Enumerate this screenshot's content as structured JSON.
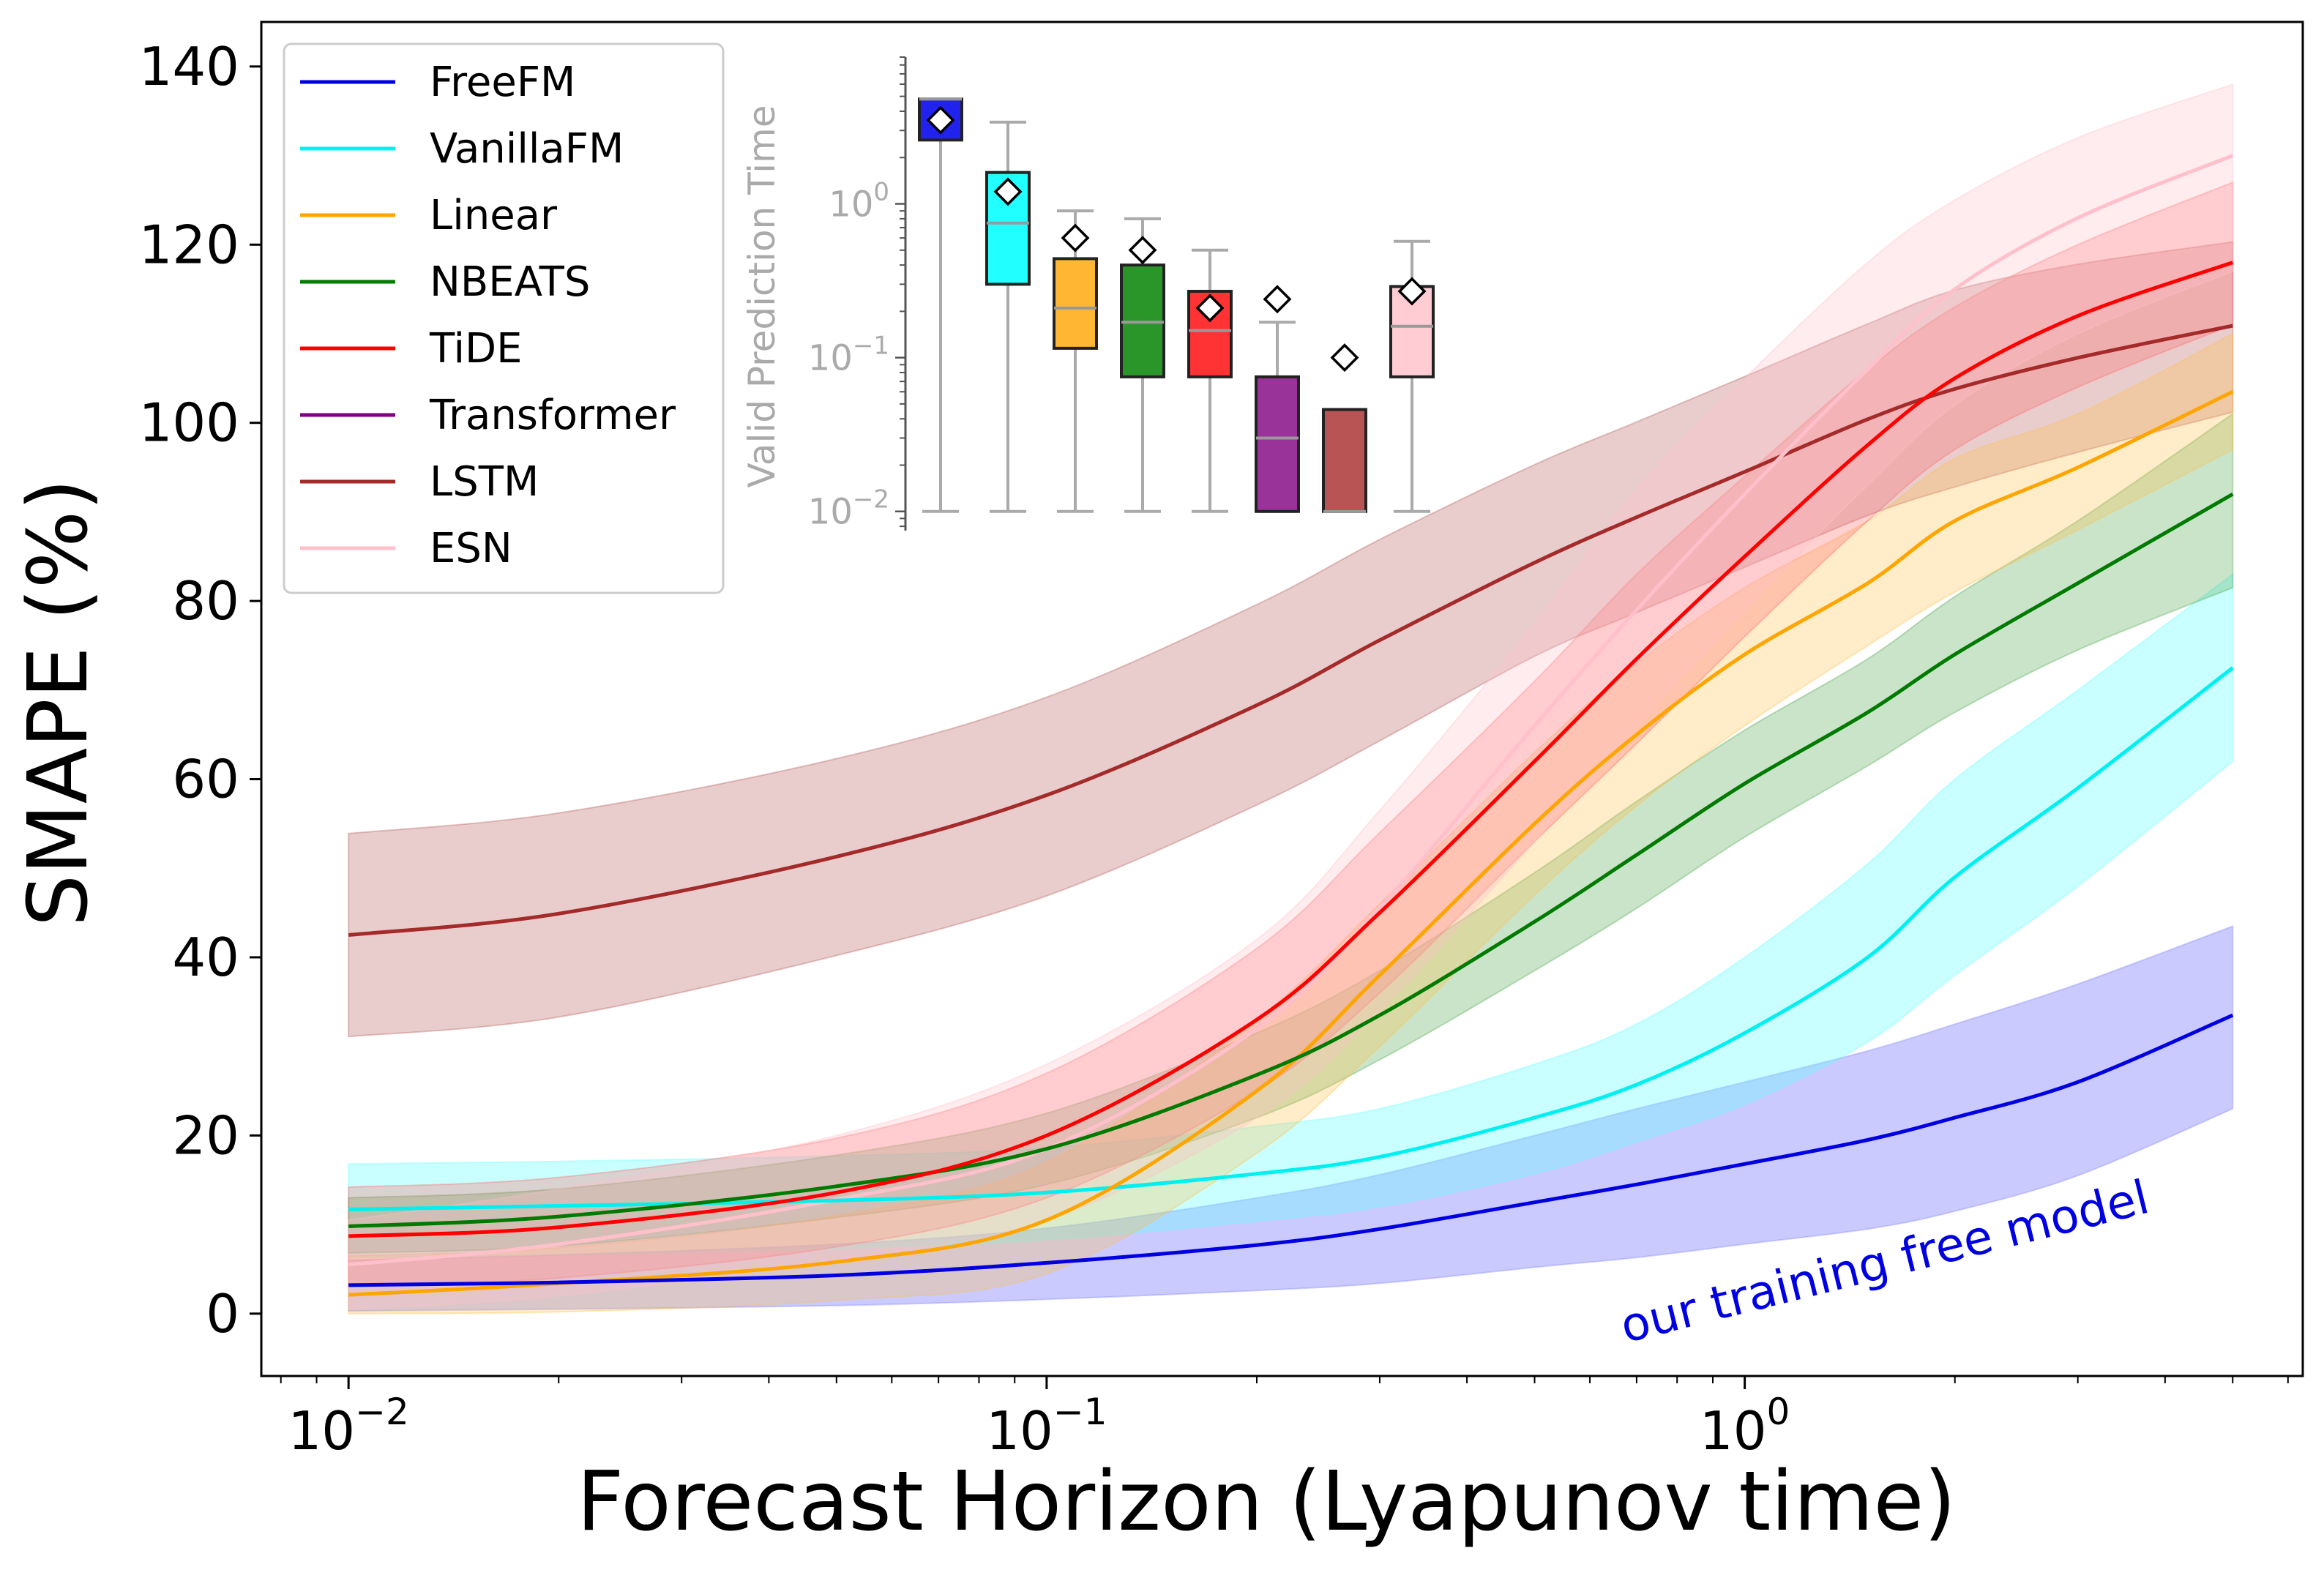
{
  "colors": {
    "FreeFM": "#0000e0",
    "VanillaFM": "#00f0f0",
    "Linear": "#ffa500",
    "NBEATS": "#007a00",
    "TiDE": "#ff0000",
    "Transformer": "#800080",
    "LSTM": "#a52a2a",
    "ESN": "#ffc0cb",
    "FreeFM_fill": "#8080ff",
    "VanillaFM_fill": "#66ffff",
    "Linear_fill": "#ffc04d",
    "NBEATS_fill": "#4da64d",
    "TiDE_fill": "#ff6666",
    "LSTM_fill": "#b55a5a",
    "ESN_fill": "#ffc0cb"
  },
  "chart_data": [
    {
      "type": "line",
      "title": "",
      "xlabel": "Forecast Horizon (Lyapunov time)",
      "ylabel": "SMAPE (%)",
      "xscale": "log",
      "xlim": [
        0.0075,
        6.3
      ],
      "ylim": [
        -7,
        145
      ],
      "x_ticks": [
        {
          "value": 0.01,
          "base": "10",
          "exp": "−2"
        },
        {
          "value": 0.1,
          "base": "10",
          "exp": "−1"
        },
        {
          "value": 1,
          "base": "10",
          "exp": "0"
        }
      ],
      "y_ticks": [
        0,
        20,
        40,
        60,
        80,
        100,
        120,
        140
      ],
      "x": [
        0.01,
        0.02,
        0.05,
        0.1,
        0.2,
        0.3,
        0.5,
        0.7,
        1.0,
        1.5,
        2.0,
        3.0,
        5.0
      ],
      "series": [
        {
          "name": "FreeFM",
          "values": [
            3.2,
            3.5,
            4.3,
            5.7,
            7.7,
            9.5,
            12.5,
            14.5,
            16.8,
            19.5,
            22,
            26,
            33.5
          ],
          "lower": [
            0.3,
            0.5,
            0.9,
            1.6,
            2.6,
            3.4,
            5.2,
            6.3,
            7.8,
            9.5,
            11.5,
            15.5,
            23
          ],
          "upper": [
            6,
            6.6,
            7.8,
            9.6,
            13,
            15.6,
            20,
            23,
            26,
            29.5,
            32.5,
            37,
            43.5
          ]
        },
        {
          "name": "VanillaFM",
          "values": [
            11.7,
            12.1,
            12.7,
            13.6,
            15.7,
            17.6,
            22,
            25.7,
            31.5,
            40,
            49,
            59,
            72.5
          ],
          "lower": [
            6.3,
            6.6,
            7.3,
            8.3,
            10.4,
            12,
            15.7,
            19.3,
            23.5,
            30.5,
            38,
            48,
            62
          ],
          "upper": [
            16.8,
            17.1,
            17.7,
            18.6,
            21,
            23,
            28,
            32.5,
            40,
            50.5,
            60,
            70,
            83
          ]
        },
        {
          "name": "Linear",
          "values": [
            2.1,
            3.4,
            5.8,
            10.5,
            25,
            38,
            55,
            65,
            74,
            82,
            89,
            95,
            103.5
          ],
          "lower": [
            0,
            0.2,
            1.5,
            4.5,
            18,
            30,
            47,
            57,
            66,
            75,
            81,
            88,
            97
          ],
          "upper": [
            6.5,
            7.4,
            11,
            17,
            33,
            46,
            63,
            73,
            81.5,
            89,
            96,
            101,
            110
          ]
        },
        {
          "name": "NBEATS",
          "values": [
            9.8,
            10.9,
            14.3,
            18.5,
            26.8,
            33.5,
            44,
            51.5,
            59.5,
            67.5,
            74,
            82,
            92
          ],
          "lower": [
            6.8,
            7.6,
            10.8,
            14.5,
            22,
            28.5,
            38.5,
            45.5,
            53.5,
            61.5,
            67.5,
            74.5,
            81.5
          ],
          "upper": [
            13,
            14,
            17.8,
            22.5,
            31.5,
            38.5,
            49.5,
            57.5,
            65.5,
            73.5,
            80.5,
            89,
            101
          ]
        },
        {
          "name": "TiDE",
          "values": [
            8.7,
            9.7,
            13.6,
            20,
            33,
            45,
            62,
            73.5,
            85,
            97.5,
            105,
            112,
            118
          ],
          "lower": [
            3,
            4,
            7.5,
            13,
            25,
            36,
            53,
            64,
            76,
            89,
            97,
            104,
            111
          ],
          "upper": [
            14.2,
            15.3,
            19.7,
            27,
            41,
            54,
            71,
            83,
            94,
            106,
            113,
            120,
            127
          ]
        },
        {
          "name": "LSTM",
          "values": [
            42.5,
            44.9,
            51.3,
            58.2,
            68.3,
            75.6,
            84.3,
            89.4,
            94.5,
            100.4,
            103.8,
            107.3,
            110.9
          ],
          "lower": [
            31.1,
            33.3,
            40.2,
            46.9,
            57.1,
            64.3,
            73.8,
            78.7,
            83.8,
            89.6,
            92.8,
            96.7,
            101.2
          ],
          "upper": [
            53.9,
            56.2,
            62.3,
            69.2,
            79.6,
            86.9,
            95.3,
            100.1,
            105.2,
            111.1,
            114.9,
            117.8,
            120.3
          ]
        },
        {
          "name": "ESN",
          "values": [
            5.5,
            7.8,
            12.8,
            18.5,
            32,
            45.5,
            66,
            79,
            92,
            106,
            115,
            123,
            130
          ],
          "lower": [
            0.5,
            2,
            6,
            10.5,
            22,
            34,
            53,
            66,
            79,
            93,
            102,
            110,
            117
          ],
          "upper": [
            10.5,
            14,
            20,
            28,
            42,
            56.5,
            77.5,
            92.5,
            105,
            118,
            125,
            132,
            138
          ]
        }
      ],
      "legend": {
        "location": "top-left",
        "entries": [
          "FreeFM",
          "VanillaFM",
          "Linear",
          "NBEATS",
          "TiDE",
          "Transformer",
          "LSTM",
          "ESN"
        ]
      },
      "annotation": "our training free model"
    },
    {
      "type": "box",
      "ylabel": "Valid Prediction Time",
      "yscale": "log",
      "ylim": [
        0.0075,
        9
      ],
      "y_ticks": [
        {
          "value": 1,
          "base": "10",
          "exp": "0"
        },
        {
          "value": 0.1,
          "base": "10",
          "exp": "−1"
        },
        {
          "value": 0.01,
          "base": "10",
          "exp": "−2"
        }
      ],
      "boxes": [
        {
          "name": "FreeFM",
          "whisker_low": 0.01,
          "q1": 2.6,
          "median": 4.8,
          "q3": 4.8,
          "whisker_high": 4.8,
          "mean": 3.5
        },
        {
          "name": "VanillaFM",
          "whisker_low": 0.01,
          "q1": 0.3,
          "median": 0.75,
          "q3": 1.6,
          "whisker_high": 3.4,
          "mean": 1.2
        },
        {
          "name": "Linear",
          "whisker_low": 0.01,
          "q1": 0.115,
          "median": 0.21,
          "q3": 0.44,
          "whisker_high": 0.9,
          "mean": 0.6
        },
        {
          "name": "NBEATS",
          "whisker_low": 0.01,
          "q1": 0.075,
          "median": 0.17,
          "q3": 0.4,
          "whisker_high": 0.8,
          "mean": 0.5
        },
        {
          "name": "TiDE",
          "whisker_low": 0.01,
          "q1": 0.075,
          "median": 0.15,
          "q3": 0.27,
          "whisker_high": 0.5,
          "mean": 0.21
        },
        {
          "name": "Transformer",
          "whisker_low": 0.01,
          "q1": 0.01,
          "median": 0.03,
          "q3": 0.075,
          "whisker_high": 0.17,
          "mean": 0.24
        },
        {
          "name": "LSTM",
          "whisker_low": 0.01,
          "q1": 0.01,
          "median": 0.01,
          "q3": 0.046,
          "whisker_high": 0.046,
          "mean": 0.1
        },
        {
          "name": "ESN",
          "whisker_low": 0.01,
          "q1": 0.075,
          "median": 0.16,
          "q3": 0.29,
          "whisker_high": 0.57,
          "mean": 0.27
        }
      ]
    }
  ]
}
